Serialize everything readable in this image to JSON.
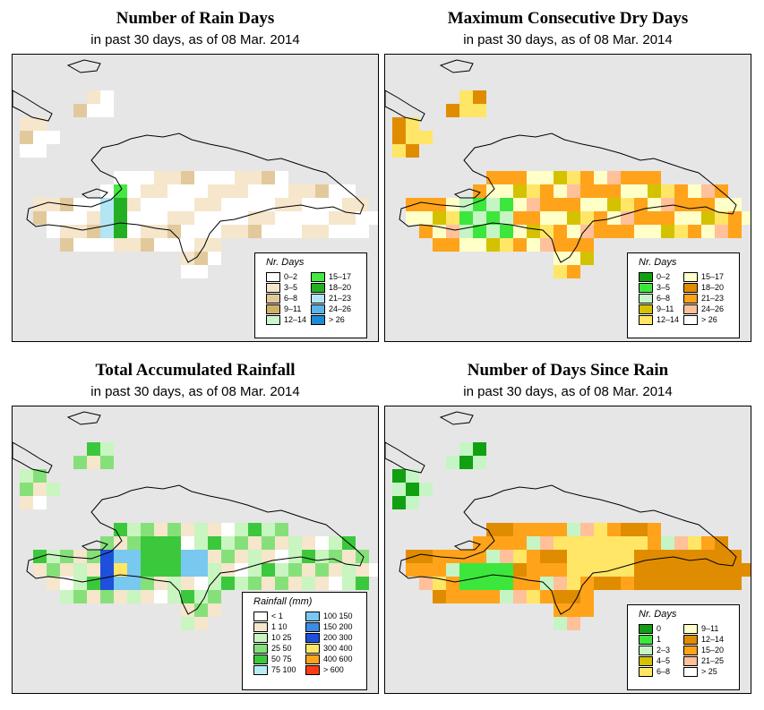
{
  "panels": [
    {
      "id": "rain-days",
      "title": "Number of Rain Days",
      "subtitle": "in past 30 days, as of  08 Mar. 2014",
      "legend": {
        "title": "Nr. Days",
        "items": [
          {
            "label": "0–2",
            "color": "#ffffff"
          },
          {
            "label": "3–5",
            "color": "#f5e6cc"
          },
          {
            "label": "6–8",
            "color": "#e2c99c"
          },
          {
            "label": "9–11",
            "color": "#cfb064"
          },
          {
            "label": "12–14",
            "color": "#ccf5cc"
          },
          {
            "label": "15–17",
            "color": "#44e844"
          },
          {
            "label": "18–20",
            "color": "#22b022"
          },
          {
            "label": "21–23",
            "color": "#b3e5f2"
          },
          {
            "label": "24–26",
            "color": "#5ab4e8"
          },
          {
            "label": "> 26",
            "color": "#1e8ad6"
          }
        ]
      }
    },
    {
      "id": "max-dry-days",
      "title": "Maximum Consecutive Dry Days",
      "subtitle": "in past 30 days, as of  08 Mar. 2014",
      "legend": {
        "title": "Nr. Days",
        "items": [
          {
            "label": "0–2",
            "color": "#11a011"
          },
          {
            "label": "3–5",
            "color": "#3ce63c"
          },
          {
            "label": "6–8",
            "color": "#c5f5c5"
          },
          {
            "label": "9–11",
            "color": "#d4c200"
          },
          {
            "label": "12–14",
            "color": "#ffe666"
          },
          {
            "label": "15–17",
            "color": "#ffffc8"
          },
          {
            "label": "18–20",
            "color": "#e08c00"
          },
          {
            "label": "21–23",
            "color": "#ffa31a"
          },
          {
            "label": "24–26",
            "color": "#ffc09a"
          },
          {
            "label": "> 26",
            "color": "#ffffff"
          }
        ]
      }
    },
    {
      "id": "total-rainfall",
      "title": "Total Accumulated Rainfall",
      "subtitle": "in past 30 days, as of  08 Mar. 2014",
      "legend": {
        "title": "Rainfall (mm)",
        "items": [
          {
            "label": "< 1",
            "color": "#ffffff"
          },
          {
            "label": "1   10",
            "color": "#f5e6cc"
          },
          {
            "label": "10   25",
            "color": "#c8f5c0"
          },
          {
            "label": "25   50",
            "color": "#86e07a"
          },
          {
            "label": "50   75",
            "color": "#3cc83c"
          },
          {
            "label": "75   100",
            "color": "#b8ecf5"
          },
          {
            "label": "100  150",
            "color": "#78c8f0"
          },
          {
            "label": "150  200",
            "color": "#3c8ce6"
          },
          {
            "label": "200  300",
            "color": "#1e50dc"
          },
          {
            "label": "300  400",
            "color": "#ffe666"
          },
          {
            "label": "400  600",
            "color": "#ffa31a"
          },
          {
            "label": "> 600",
            "color": "#ff3c14"
          }
        ]
      }
    },
    {
      "id": "days-since-rain",
      "title": "Number of Days Since Rain",
      "subtitle": "in past 30 days, as of  08 Mar. 2014",
      "legend": {
        "title": "Nr. Days",
        "items": [
          {
            "label": "0",
            "color": "#11a011"
          },
          {
            "label": "1",
            "color": "#3ce63c"
          },
          {
            "label": "2–3",
            "color": "#c5f5c5"
          },
          {
            "label": "4–5",
            "color": "#d4c200"
          },
          {
            "label": "6–8",
            "color": "#ffe666"
          },
          {
            "label": "9–11",
            "color": "#ffffc8"
          },
          {
            "label": "12–14",
            "color": "#e08c00"
          },
          {
            "label": "15–20",
            "color": "#ffa31a"
          },
          {
            "label": "21–25",
            "color": "#ffc09a"
          },
          {
            "label": "> 25",
            "color": "#ffffff"
          }
        ]
      }
    }
  ]
}
